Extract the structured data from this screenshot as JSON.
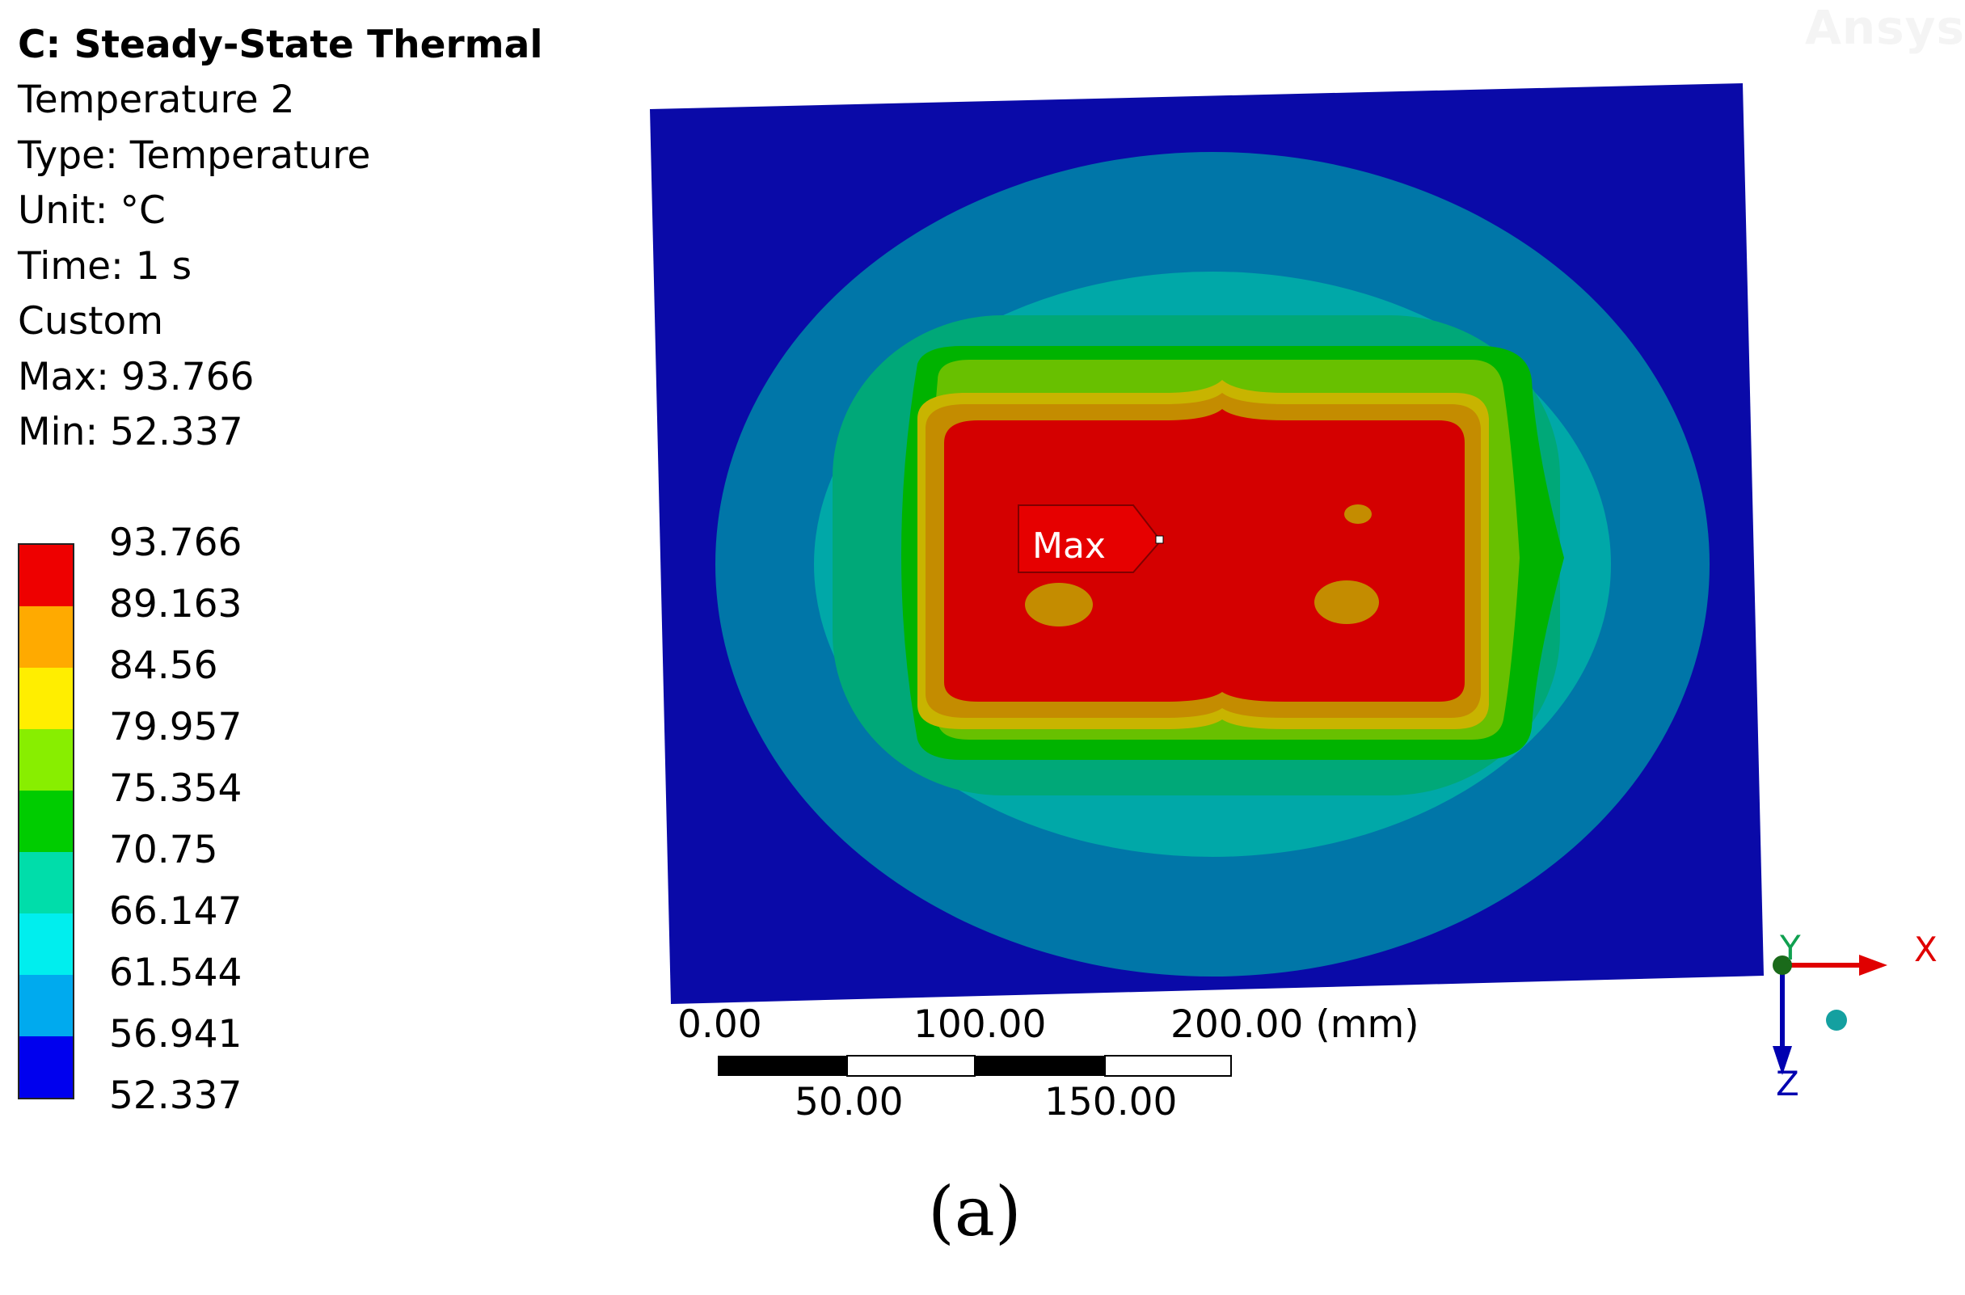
{
  "watermark": "Ansys",
  "info": {
    "title": "C: Steady-State Thermal",
    "result_name": "Temperature 2",
    "type": "Type: Temperature",
    "unit": "Unit: °C",
    "time": "Time: 1 s",
    "mode": "Custom",
    "max": "Max: 93.766",
    "min": "Min: 52.337"
  },
  "legend": {
    "labels": [
      "93.766",
      "89.163",
      "84.56",
      "79.957",
      "75.354",
      "70.75",
      "66.147",
      "61.544",
      "56.941",
      "52.337"
    ],
    "colors": [
      "#ee0000",
      "#ffaa00",
      "#ffee00",
      "#88ee00",
      "#00cc00",
      "#00ddaa",
      "#00eeee",
      "#00aaee",
      "#0000ee"
    ]
  },
  "contour_colors": {
    "min_band": "#0a0aa8",
    "band2": "#0076a8",
    "band3": "#00a8a8",
    "band4": "#00a878",
    "band5": "#00b300",
    "band6": "#68c000",
    "band7": "#c8b400",
    "band8": "#c48c00",
    "max_band": "#d40000"
  },
  "probe": {
    "label": "Max"
  },
  "scale_bar": {
    "top_labels": [
      "0.00",
      "100.00",
      "200.00 (mm)"
    ],
    "bottom_labels": [
      "50.00",
      "150.00"
    ]
  },
  "triad": {
    "x": "X",
    "y": "Y",
    "z": "Z"
  },
  "caption": "(a)"
}
